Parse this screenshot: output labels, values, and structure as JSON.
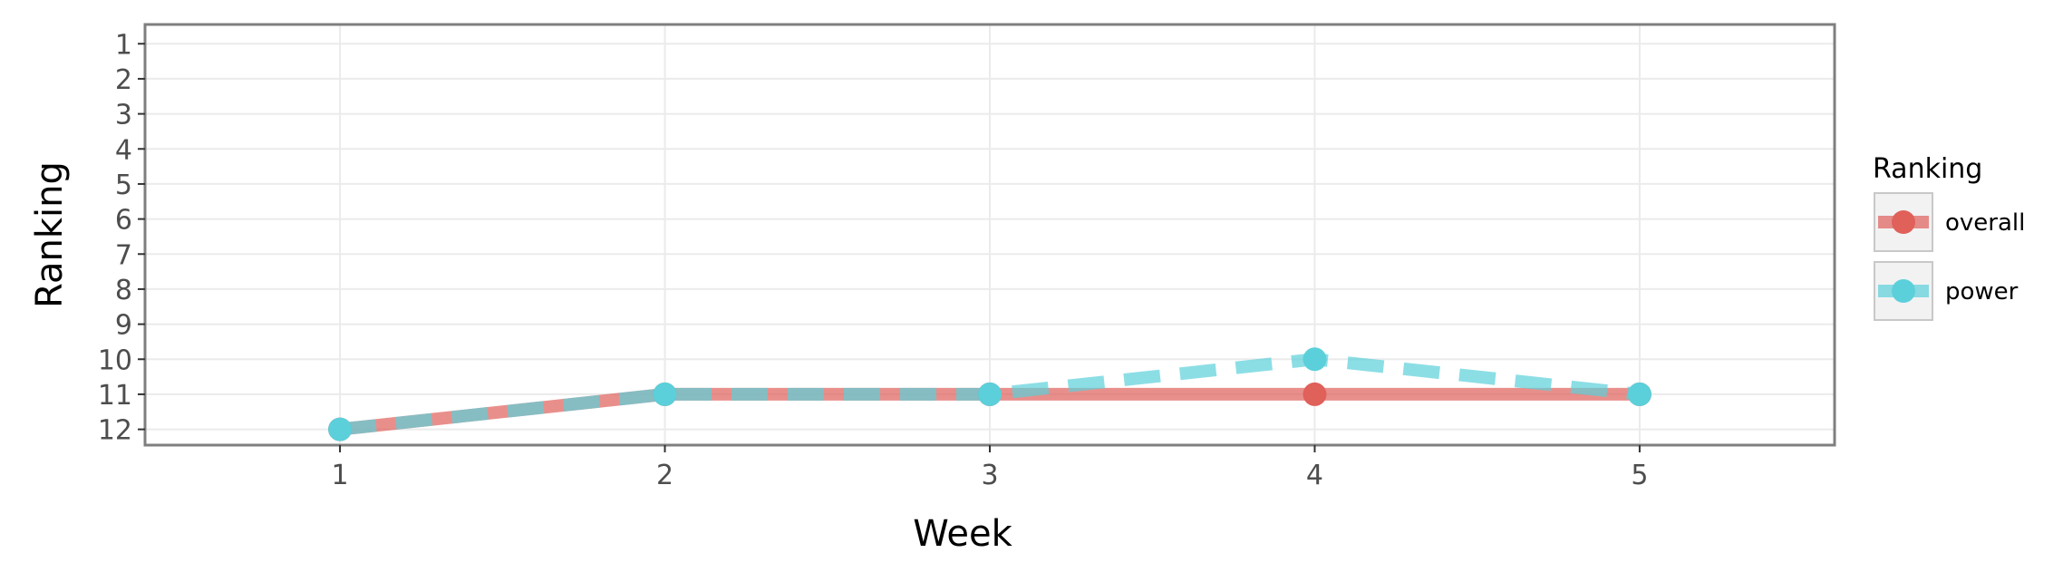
{
  "chart_data": {
    "type": "line",
    "xlabel": "Week",
    "ylabel": "Ranking",
    "x": [
      1,
      2,
      3,
      4,
      5
    ],
    "xlim": [
      0.4,
      5.6
    ],
    "ylim": [
      12.45,
      0.45
    ],
    "y_reversed": true,
    "x_ticks": [
      "1",
      "2",
      "3",
      "4",
      "5"
    ],
    "y_ticks": [
      "1",
      "2",
      "3",
      "4",
      "5",
      "6",
      "7",
      "8",
      "9",
      "10",
      "11",
      "12"
    ],
    "grid": true,
    "legend": {
      "title": "Ranking",
      "position": "right"
    },
    "series": [
      {
        "name": "overall",
        "values": [
          12,
          11,
          11,
          11,
          11
        ],
        "color": "#e0605a",
        "line_style": "solid"
      },
      {
        "name": "power",
        "values": [
          12,
          11,
          11,
          10,
          11
        ],
        "color": "#5bd0da",
        "line_style": "dashed"
      }
    ]
  }
}
